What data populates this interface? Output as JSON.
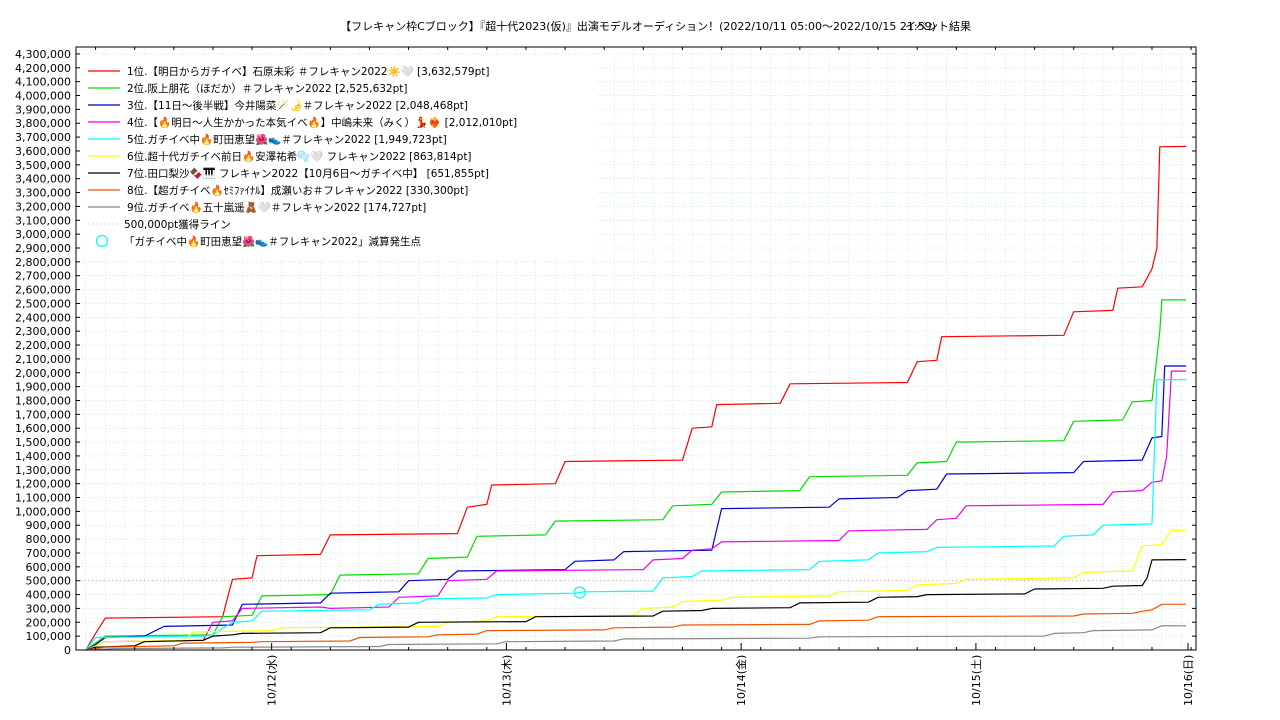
{
  "chart_data": {
    "type": "line",
    "title": "【フレキャン枠Cブロック】『超十代2023(仮)』出演モデルオーディション！(2022/10/11 05:00〜2022/10/15 21:59)",
    "subtitle": "イベント結果",
    "xlabel": "",
    "ylabel": "",
    "x_unit": "hours since event start (2022/10/11 05:00)",
    "xlim": [
      -1,
      113.5
    ],
    "ylim": [
      0,
      4350000
    ],
    "y_ticks": [
      0,
      100000,
      200000,
      300000,
      400000,
      500000,
      600000,
      700000,
      800000,
      900000,
      1000000,
      1100000,
      1200000,
      1300000,
      1400000,
      1500000,
      1600000,
      1700000,
      1800000,
      1900000,
      2000000,
      2100000,
      2200000,
      2300000,
      2400000,
      2500000,
      2600000,
      2700000,
      2800000,
      2900000,
      3000000,
      3100000,
      3200000,
      3300000,
      3400000,
      3500000,
      3600000,
      3700000,
      3800000,
      3900000,
      4000000,
      4100000,
      4200000,
      4300000
    ],
    "x_ticks": [
      {
        "x": 19,
        "label": "10/12(水)"
      },
      {
        "x": 43,
        "label": "10/13(木)"
      },
      {
        "x": 67,
        "label": "10/14(金)"
      },
      {
        "x": 91,
        "label": "10/15(土)"
      },
      {
        "x": 115,
        "label": "10/16(日)"
      }
    ],
    "grid": true,
    "legend_position": "top-left",
    "reference_line": {
      "name": "500,000pt獲得ライン",
      "y": 500000,
      "color": "#ff9999"
    },
    "marker": {
      "name": "「ガチイベ中🔥町田恵望🌺👟＃フレキャン2022」減算発生点",
      "x": 50.5,
      "y": 415000,
      "color": "#00ffff"
    },
    "series": [
      {
        "name": "1位.【明日からガチイベ】石原未彩 ＃フレキャン2022☀️🤍 [3,632,579pt]",
        "color": "#ff0000",
        "points": [
          [
            0,
            0
          ],
          [
            1,
            120000
          ],
          [
            2,
            230000
          ],
          [
            14,
            240000
          ],
          [
            14.5,
            380000
          ],
          [
            15,
            510000
          ],
          [
            17,
            520000
          ],
          [
            17.5,
            680000
          ],
          [
            24,
            690000
          ],
          [
            25,
            830000
          ],
          [
            38,
            840000
          ],
          [
            39,
            1030000
          ],
          [
            41,
            1050000
          ],
          [
            41.5,
            1190000
          ],
          [
            48,
            1200000
          ],
          [
            49,
            1360000
          ],
          [
            61,
            1370000
          ],
          [
            62,
            1600000
          ],
          [
            64,
            1610000
          ],
          [
            64.5,
            1770000
          ],
          [
            71,
            1780000
          ],
          [
            72,
            1920000
          ],
          [
            84,
            1930000
          ],
          [
            85,
            2080000
          ],
          [
            87,
            2090000
          ],
          [
            87.5,
            2260000
          ],
          [
            100,
            2270000
          ],
          [
            101,
            2440000
          ],
          [
            105,
            2450000
          ],
          [
            105.5,
            2610000
          ],
          [
            108,
            2620000
          ],
          [
            109,
            2750000
          ],
          [
            109.5,
            2900000
          ],
          [
            109.8,
            3630000
          ],
          [
            112.5,
            3632579
          ]
        ]
      },
      {
        "name": "2位.阪上朋花（ほだか）＃フレキャン2022 [2,525,632pt]",
        "color": "#00dd00",
        "points": [
          [
            0,
            0
          ],
          [
            2,
            100000
          ],
          [
            13,
            110000
          ],
          [
            14,
            240000
          ],
          [
            17,
            250000
          ],
          [
            18,
            390000
          ],
          [
            25,
            400000
          ],
          [
            26,
            540000
          ],
          [
            34,
            550000
          ],
          [
            35,
            660000
          ],
          [
            39,
            670000
          ],
          [
            40,
            820000
          ],
          [
            47,
            830000
          ],
          [
            48,
            930000
          ],
          [
            59,
            940000
          ],
          [
            60,
            1040000
          ],
          [
            64,
            1050000
          ],
          [
            65,
            1140000
          ],
          [
            73,
            1150000
          ],
          [
            74,
            1250000
          ],
          [
            84,
            1260000
          ],
          [
            85,
            1350000
          ],
          [
            88,
            1360000
          ],
          [
            89,
            1500000
          ],
          [
            100,
            1510000
          ],
          [
            101,
            1650000
          ],
          [
            106,
            1660000
          ],
          [
            107,
            1790000
          ],
          [
            109,
            1800000
          ],
          [
            109.8,
            2300000
          ],
          [
            110,
            2525632
          ],
          [
            112.5,
            2525632
          ]
        ]
      },
      {
        "name": "3位.【11日〜後半戦】今井陽菜🪄🌛＃フレキャン2022 [2,048,468pt]",
        "color": "#0000cc",
        "points": [
          [
            0,
            0
          ],
          [
            1,
            40000
          ],
          [
            2,
            90000
          ],
          [
            6,
            100000
          ],
          [
            8,
            170000
          ],
          [
            15,
            180000
          ],
          [
            16,
            330000
          ],
          [
            24,
            340000
          ],
          [
            25,
            410000
          ],
          [
            32,
            420000
          ],
          [
            33,
            500000
          ],
          [
            37,
            510000
          ],
          [
            38,
            570000
          ],
          [
            49,
            580000
          ],
          [
            50,
            640000
          ],
          [
            54,
            650000
          ],
          [
            55,
            710000
          ],
          [
            64,
            720000
          ],
          [
            65,
            1020000
          ],
          [
            76,
            1030000
          ],
          [
            77,
            1090000
          ],
          [
            83,
            1100000
          ],
          [
            84,
            1150000
          ],
          [
            87,
            1160000
          ],
          [
            88,
            1270000
          ],
          [
            101,
            1280000
          ],
          [
            102,
            1360000
          ],
          [
            108,
            1370000
          ],
          [
            109,
            1530000
          ],
          [
            110,
            1540000
          ],
          [
            110.3,
            2048468
          ],
          [
            112.5,
            2048468
          ]
        ]
      },
      {
        "name": "4位.【🔥明日〜人生かかった本気イベ🔥】中嶋未来（みく）💃❤️‍🔥 [2,012,010pt]",
        "color": "#ee00ee",
        "points": [
          [
            0,
            0
          ],
          [
            2,
            60000
          ],
          [
            12,
            70000
          ],
          [
            13,
            200000
          ],
          [
            15,
            210000
          ],
          [
            16,
            300000
          ],
          [
            24,
            310000
          ],
          [
            25,
            300000
          ],
          [
            31,
            310000
          ],
          [
            32,
            380000
          ],
          [
            36,
            390000
          ],
          [
            37,
            500000
          ],
          [
            41,
            510000
          ],
          [
            42,
            570000
          ],
          [
            57,
            580000
          ],
          [
            58,
            650000
          ],
          [
            61,
            660000
          ],
          [
            62,
            720000
          ],
          [
            64,
            730000
          ],
          [
            65,
            780000
          ],
          [
            77,
            790000
          ],
          [
            78,
            860000
          ],
          [
            86,
            870000
          ],
          [
            87,
            940000
          ],
          [
            89,
            950000
          ],
          [
            90,
            1040000
          ],
          [
            104,
            1050000
          ],
          [
            105,
            1140000
          ],
          [
            108,
            1150000
          ],
          [
            109,
            1210000
          ],
          [
            110,
            1220000
          ],
          [
            110.5,
            1400000
          ],
          [
            111,
            2012010
          ],
          [
            112.5,
            2012010
          ]
        ]
      },
      {
        "name": "5位.ガチイベ中🔥町田恵望🌺👟＃フレキャン2022 [1,949,723pt]",
        "color": "#00ffff",
        "points": [
          [
            0,
            0
          ],
          [
            1,
            90000
          ],
          [
            12,
            100000
          ],
          [
            13,
            110000
          ],
          [
            15,
            200000
          ],
          [
            17,
            210000
          ],
          [
            18,
            280000
          ],
          [
            29,
            290000
          ],
          [
            30,
            330000
          ],
          [
            34,
            340000
          ],
          [
            35,
            370000
          ],
          [
            41,
            375000
          ],
          [
            42,
            400000
          ],
          [
            50,
            410000
          ],
          [
            51,
            420000
          ],
          [
            58,
            425000
          ],
          [
            59,
            520000
          ],
          [
            62,
            530000
          ],
          [
            63,
            570000
          ],
          [
            74,
            580000
          ],
          [
            75,
            640000
          ],
          [
            80,
            650000
          ],
          [
            81,
            700000
          ],
          [
            86,
            710000
          ],
          [
            87,
            740000
          ],
          [
            99,
            750000
          ],
          [
            100,
            820000
          ],
          [
            103,
            830000
          ],
          [
            104,
            900000
          ],
          [
            109,
            910000
          ],
          [
            109.5,
            1950000
          ],
          [
            112.5,
            1949723
          ]
        ]
      },
      {
        "name": "6位.超十代ガチイベ前日🔥安澤祐希🫧🤍 フレキャン2022 [863,814pt]",
        "color": "#ffff00",
        "points": [
          [
            0,
            0
          ],
          [
            2,
            60000
          ],
          [
            10,
            70000
          ],
          [
            11,
            130000
          ],
          [
            19,
            140000
          ],
          [
            20,
            160000
          ],
          [
            36,
            170000
          ],
          [
            37,
            200000
          ],
          [
            41,
            210000
          ],
          [
            42,
            240000
          ],
          [
            56,
            250000
          ],
          [
            57,
            300000
          ],
          [
            60,
            310000
          ],
          [
            61,
            350000
          ],
          [
            65,
            360000
          ],
          [
            66,
            380000
          ],
          [
            76,
            390000
          ],
          [
            77,
            420000
          ],
          [
            84,
            430000
          ],
          [
            85,
            470000
          ],
          [
            89,
            480000
          ],
          [
            90,
            510000
          ],
          [
            101,
            520000
          ],
          [
            102,
            560000
          ],
          [
            107,
            570000
          ],
          [
            108,
            750000
          ],
          [
            110,
            760000
          ],
          [
            111,
            864000
          ],
          [
            112.5,
            863814
          ]
        ]
      },
      {
        "name": "7位.田口梨沙🍫🎹 フレキャン2022【10月6日〜ガチイベ中】 [651,855pt]",
        "color": "#000000",
        "points": [
          [
            0,
            0
          ],
          [
            1,
            20000
          ],
          [
            5,
            30000
          ],
          [
            6,
            60000
          ],
          [
            12,
            70000
          ],
          [
            13,
            100000
          ],
          [
            15,
            110000
          ],
          [
            16,
            120000
          ],
          [
            24,
            125000
          ],
          [
            25,
            160000
          ],
          [
            33,
            165000
          ],
          [
            34,
            200000
          ],
          [
            45,
            205000
          ],
          [
            46,
            240000
          ],
          [
            58,
            245000
          ],
          [
            59,
            280000
          ],
          [
            63,
            285000
          ],
          [
            64,
            300000
          ],
          [
            72,
            305000
          ],
          [
            73,
            340000
          ],
          [
            80,
            345000
          ],
          [
            81,
            380000
          ],
          [
            85,
            385000
          ],
          [
            86,
            400000
          ],
          [
            96,
            405000
          ],
          [
            97,
            440000
          ],
          [
            104,
            445000
          ],
          [
            105,
            460000
          ],
          [
            108,
            465000
          ],
          [
            108.5,
            520000
          ],
          [
            109,
            650000
          ],
          [
            112.5,
            651855
          ]
        ]
      },
      {
        "name": "8位.【超ガチイベ🔥ｾﾐﾌｧｲﾅﾙ】成瀬いお＃フレキャン2022 [330,300pt]",
        "color": "#ee5500",
        "points": [
          [
            0,
            0
          ],
          [
            2,
            20000
          ],
          [
            9,
            30000
          ],
          [
            10,
            50000
          ],
          [
            17,
            55000
          ],
          [
            18,
            60000
          ],
          [
            27,
            65000
          ],
          [
            28,
            90000
          ],
          [
            35,
            95000
          ],
          [
            36,
            110000
          ],
          [
            40,
            115000
          ],
          [
            41,
            140000
          ],
          [
            53,
            145000
          ],
          [
            54,
            160000
          ],
          [
            60,
            165000
          ],
          [
            61,
            180000
          ],
          [
            74,
            185000
          ],
          [
            75,
            210000
          ],
          [
            80,
            215000
          ],
          [
            81,
            240000
          ],
          [
            101,
            245000
          ],
          [
            102,
            260000
          ],
          [
            107,
            265000
          ],
          [
            108,
            280000
          ],
          [
            109,
            290000
          ],
          [
            110,
            330000
          ],
          [
            112.5,
            330300
          ]
        ]
      },
      {
        "name": "9位.ガチイベ🔥五十嵐遥🧸🤍＃フレキャン2022 [174,727pt]",
        "color": "#888888",
        "points": [
          [
            0,
            0
          ],
          [
            3,
            10000
          ],
          [
            14,
            15000
          ],
          [
            15,
            20000
          ],
          [
            30,
            25000
          ],
          [
            31,
            40000
          ],
          [
            42,
            45000
          ],
          [
            43,
            60000
          ],
          [
            54,
            65000
          ],
          [
            55,
            80000
          ],
          [
            74,
            85000
          ],
          [
            75,
            95000
          ],
          [
            98,
            100000
          ],
          [
            99,
            120000
          ],
          [
            102,
            125000
          ],
          [
            103,
            140000
          ],
          [
            109,
            145000
          ],
          [
            110,
            175000
          ],
          [
            112.5,
            174727
          ]
        ]
      }
    ]
  }
}
